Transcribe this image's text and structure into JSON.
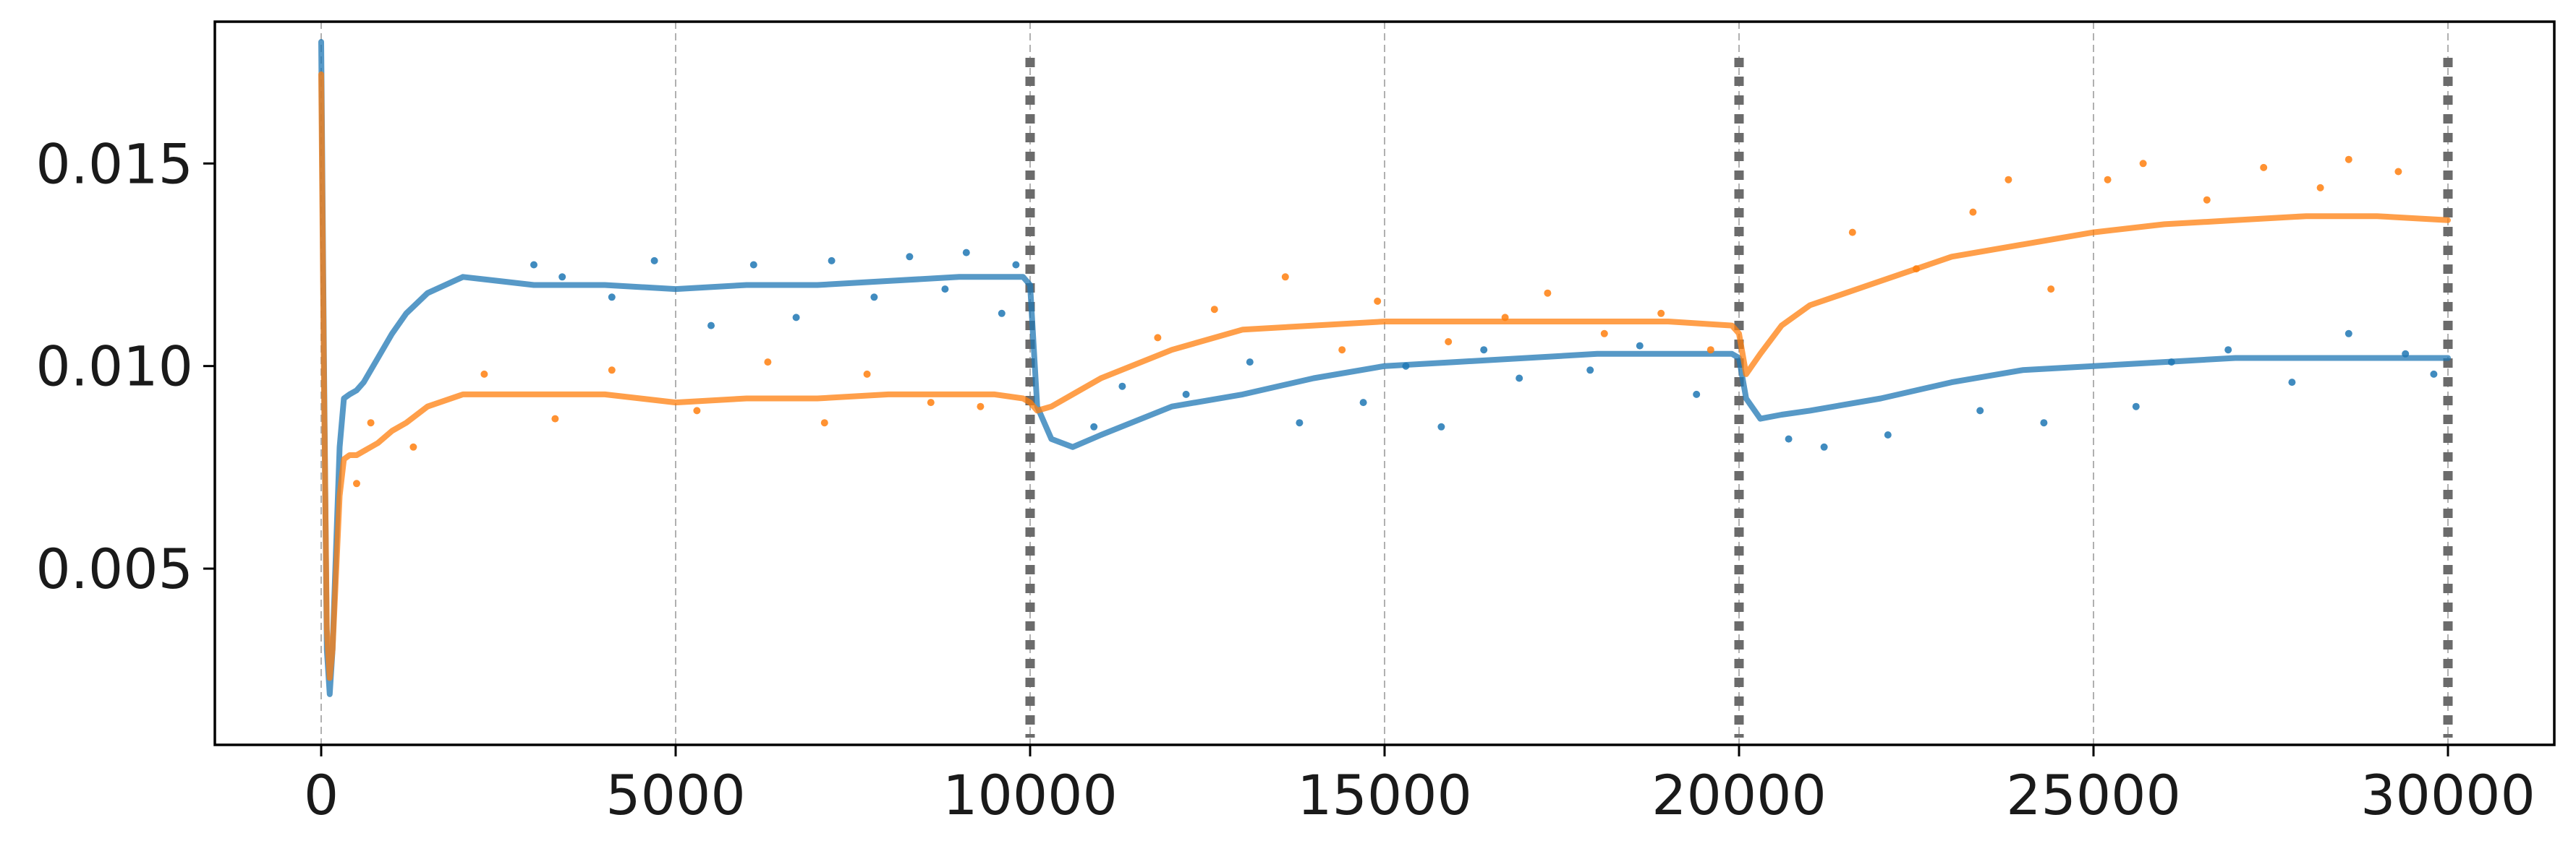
{
  "chart_data": {
    "type": "line",
    "title": "",
    "xlabel": "",
    "ylabel": "",
    "xlim": [
      -1500,
      31500
    ],
    "ylim": [
      0.00065,
      0.0185
    ],
    "xticks": [
      0,
      5000,
      10000,
      15000,
      20000,
      25000,
      30000
    ],
    "xtick_labels": [
      "0",
      "5000",
      "10000",
      "15000",
      "20000",
      "25000",
      "30000"
    ],
    "yticks": [
      0.005,
      0.01,
      0.015
    ],
    "ytick_labels": [
      "0.005",
      "0.010",
      "0.015"
    ],
    "grid": "vertical dashed at x ticks",
    "legend": "none",
    "task_boundaries": [
      10000,
      20000,
      30000
    ],
    "series": [
      {
        "color": "#1f77b4",
        "x": [
          0,
          40,
          80,
          120,
          160,
          200,
          260,
          320,
          400,
          500,
          600,
          800,
          1000,
          1200,
          1500,
          2000,
          2500,
          3000,
          4000,
          5000,
          6000,
          7000,
          8000,
          9000,
          9500,
          9900,
          10000,
          10100,
          10300,
          10600,
          11000,
          12000,
          13000,
          14000,
          15000,
          16000,
          17000,
          18000,
          19000,
          19900,
          20000,
          20100,
          20300,
          20600,
          21000,
          22000,
          23000,
          24000,
          25000,
          26000,
          27000,
          28000,
          29000,
          30000
        ],
        "values": [
          0.018,
          0.01,
          0.003,
          0.0019,
          0.003,
          0.005,
          0.008,
          0.0092,
          0.0093,
          0.0094,
          0.0096,
          0.0102,
          0.0108,
          0.0113,
          0.0118,
          0.0122,
          0.0121,
          0.012,
          0.012,
          0.0119,
          0.012,
          0.012,
          0.0121,
          0.0122,
          0.0122,
          0.0122,
          0.012,
          0.009,
          0.0082,
          0.008,
          0.0083,
          0.009,
          0.0093,
          0.0097,
          0.01,
          0.0101,
          0.0102,
          0.0103,
          0.0103,
          0.0103,
          0.0102,
          0.0092,
          0.0087,
          0.0088,
          0.0089,
          0.0092,
          0.0096,
          0.0099,
          0.01,
          0.0101,
          0.0102,
          0.0102,
          0.0102,
          0.0102
        ]
      },
      {
        "color": "#ff7f0e",
        "x": [
          0,
          40,
          80,
          120,
          160,
          200,
          260,
          320,
          400,
          500,
          600,
          800,
          1000,
          1200,
          1500,
          2000,
          2500,
          3000,
          4000,
          5000,
          6000,
          7000,
          8000,
          9000,
          9500,
          9900,
          10000,
          10100,
          10300,
          10600,
          11000,
          12000,
          13000,
          14000,
          15000,
          16000,
          17000,
          18000,
          19000,
          19900,
          20000,
          20100,
          20300,
          20600,
          21000,
          22000,
          23000,
          24000,
          25000,
          26000,
          27000,
          28000,
          29000,
          30000
        ],
        "values": [
          0.0172,
          0.0095,
          0.0035,
          0.0023,
          0.003,
          0.0045,
          0.0068,
          0.0077,
          0.0078,
          0.0078,
          0.0079,
          0.0081,
          0.0084,
          0.0086,
          0.009,
          0.0093,
          0.0093,
          0.0093,
          0.0093,
          0.0091,
          0.0092,
          0.0092,
          0.0093,
          0.0093,
          0.0093,
          0.0092,
          0.0091,
          0.0089,
          0.009,
          0.0093,
          0.0097,
          0.0104,
          0.0109,
          0.011,
          0.0111,
          0.0111,
          0.0111,
          0.0111,
          0.0111,
          0.011,
          0.0108,
          0.0098,
          0.0103,
          0.011,
          0.0115,
          0.0121,
          0.0127,
          0.013,
          0.0133,
          0.0135,
          0.0136,
          0.0137,
          0.0137,
          0.0136
        ]
      }
    ],
    "scatter_series": [
      {
        "color": "#1f77b4",
        "x": [
          3000,
          3400,
          4100,
          4700,
          5500,
          6100,
          6700,
          7200,
          7800,
          8300,
          8800,
          9100,
          9600,
          9800,
          10900,
          11300,
          12200,
          13100,
          13800,
          14700,
          15300,
          15800,
          16400,
          16900,
          17900,
          18600,
          19400,
          20700,
          21200,
          22100,
          23400,
          24300,
          25600,
          26100,
          26900,
          27800,
          28600,
          29400,
          29800
        ],
        "values": [
          0.0125,
          0.0122,
          0.0117,
          0.0126,
          0.011,
          0.0125,
          0.0112,
          0.0126,
          0.0117,
          0.0127,
          0.0119,
          0.0128,
          0.0113,
          0.0125,
          0.0085,
          0.0095,
          0.0093,
          0.0101,
          0.0086,
          0.0091,
          0.01,
          0.0085,
          0.0104,
          0.0097,
          0.0099,
          0.0105,
          0.0093,
          0.0082,
          0.008,
          0.0083,
          0.0089,
          0.0086,
          0.009,
          0.0101,
          0.0104,
          0.0096,
          0.0108,
          0.0103,
          0.0098
        ]
      },
      {
        "color": "#ff7f0e",
        "x": [
          500,
          700,
          1300,
          2300,
          3300,
          4100,
          5300,
          6300,
          7100,
          7700,
          8600,
          9300,
          11800,
          12600,
          13600,
          14400,
          14900,
          15900,
          16700,
          17300,
          18100,
          18900,
          19600,
          21600,
          22500,
          23300,
          23800,
          24400,
          25200,
          25700,
          26600,
          27400,
          28200,
          28600,
          29300
        ],
        "values": [
          0.0071,
          0.0086,
          0.008,
          0.0098,
          0.0087,
          0.0099,
          0.0089,
          0.0101,
          0.0086,
          0.0098,
          0.0091,
          0.009,
          0.0107,
          0.0114,
          0.0122,
          0.0104,
          0.0116,
          0.0106,
          0.0112,
          0.0118,
          0.0108,
          0.0113,
          0.0104,
          0.0133,
          0.0124,
          0.0138,
          0.0146,
          0.0119,
          0.0146,
          0.015,
          0.0141,
          0.0149,
          0.0144,
          0.0151,
          0.0148
        ]
      }
    ]
  }
}
